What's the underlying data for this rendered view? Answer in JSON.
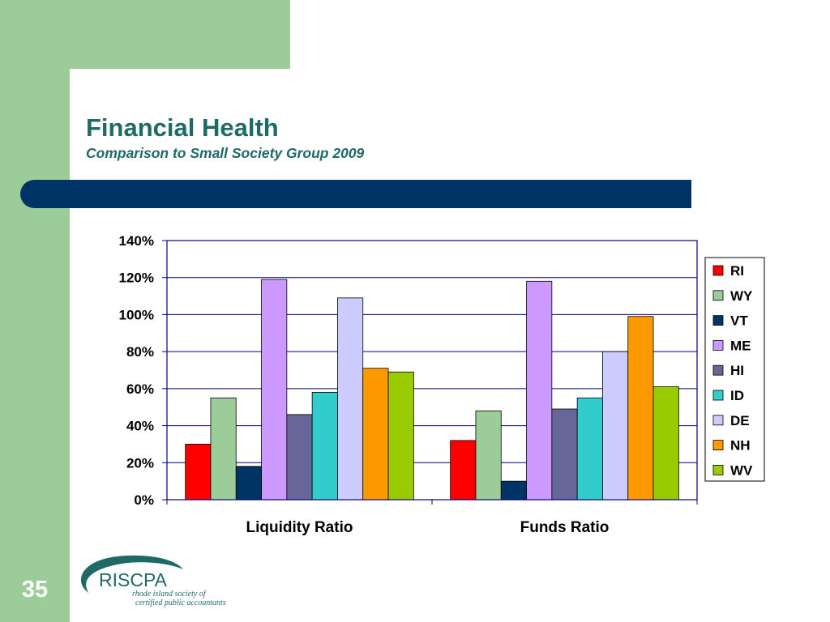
{
  "slide": {
    "title": "Financial Health",
    "subtitle": "Comparison to Small Society Group 2009",
    "page_number": "35"
  },
  "logo": {
    "name": "RISCPA",
    "tagline_line1": "rhode island society of",
    "tagline_line2": "certified public accountants"
  },
  "colors": {
    "background_green": "#9ccc97",
    "banner_navy": "#003366",
    "title_teal": "#1e6b66"
  },
  "chart_data": {
    "type": "bar",
    "title": "",
    "xlabel": "",
    "ylabel": "",
    "categories": [
      "Liquidity Ratio",
      "Funds Ratio"
    ],
    "ylim": [
      0,
      140
    ],
    "yticks": [
      0,
      20,
      40,
      60,
      80,
      100,
      120,
      140
    ],
    "ytick_labels": [
      "0%",
      "20%",
      "40%",
      "60%",
      "80%",
      "100%",
      "120%",
      "140%"
    ],
    "grid": true,
    "legend_position": "right",
    "series": [
      {
        "name": "RI",
        "color": "#ff0000",
        "values": [
          30,
          32
        ]
      },
      {
        "name": "WY",
        "color": "#9ccc97",
        "values": [
          55,
          48
        ]
      },
      {
        "name": "VT",
        "color": "#003366",
        "values": [
          18,
          10
        ]
      },
      {
        "name": "ME",
        "color": "#cc99ff",
        "values": [
          119,
          118
        ]
      },
      {
        "name": "HI",
        "color": "#666699",
        "values": [
          46,
          49
        ]
      },
      {
        "name": "ID",
        "color": "#33cccc",
        "values": [
          58,
          55
        ]
      },
      {
        "name": "DE",
        "color": "#ccccff",
        "values": [
          109,
          80
        ]
      },
      {
        "name": "NH",
        "color": "#ff9900",
        "values": [
          71,
          99
        ]
      },
      {
        "name": "WV",
        "color": "#99cc00",
        "values": [
          69,
          61
        ]
      }
    ]
  }
}
